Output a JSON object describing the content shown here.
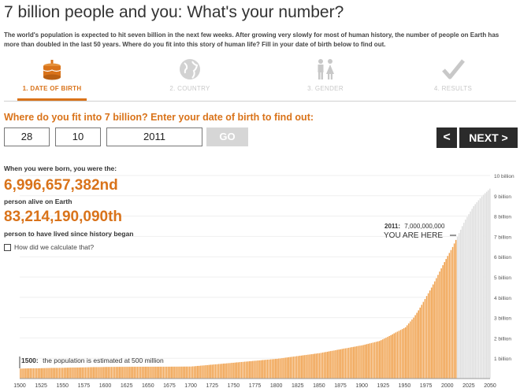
{
  "header": {
    "title": "7 billion people and you: What's your number?",
    "intro": "The world's population is expected to hit seven billion in the next few weeks. After growing very slowly for most of human history, the number of people on Earth has more than doubled in the last 50 years. Where do you fit into this story of human life? Fill in your date of birth below to find out."
  },
  "steps": [
    {
      "label": "1. DATE OF BIRTH",
      "icon": "birthday-cake-icon",
      "active": true
    },
    {
      "label": "2. COUNTRY",
      "icon": "globe-icon",
      "active": false
    },
    {
      "label": "3. GENDER",
      "icon": "male-female-icon",
      "active": false
    },
    {
      "label": "4. RESULTS",
      "icon": "checkmark-icon",
      "active": false
    }
  ],
  "form": {
    "question": "Where do you fit into 7 billion? Enter your date of birth to find out:",
    "day": "28",
    "month": "10",
    "year": "2011",
    "go_label": "GO",
    "prev_label": "<",
    "next_label": "NEXT >"
  },
  "result": {
    "born_label": "When you were born, you were the:",
    "alive_number": "6,996,657,382nd",
    "alive_label": "person alive on Earth",
    "ever_number": "83,214,190,090th",
    "ever_label": "person to have lived since history began",
    "how_link": "How did we calculate that?"
  },
  "colors": {
    "accent": "#d9731a",
    "bar": "#f0a04b",
    "projection": "#d8d8d8",
    "dark": "#2b2b2b"
  },
  "chart_data": {
    "type": "bar",
    "x_ticks": [
      "1500",
      "1525",
      "1550",
      "1575",
      "1600",
      "1625",
      "1650",
      "1675",
      "1700",
      "1725",
      "1750",
      "1775",
      "1800",
      "1825",
      "1850",
      "1875",
      "1900",
      "1925",
      "1950",
      "1975",
      "2000",
      "2025",
      "2050"
    ],
    "y_ticks": [
      "1 billion",
      "2 billion",
      "3 billion",
      "4 billion",
      "5 billion",
      "6 billion",
      "7 billion",
      "8 billion",
      "9 billion",
      "10 billion"
    ],
    "ylim": [
      0,
      10
    ],
    "y_unit": "billion",
    "historical": {
      "x": [
        1500,
        1600,
        1700,
        1750,
        1800,
        1850,
        1900,
        1920,
        1930,
        1940,
        1950,
        1955,
        1960,
        1965,
        1970,
        1975,
        1980,
        1985,
        1990,
        1995,
        2000,
        2005,
        2011
      ],
      "y": [
        0.5,
        0.58,
        0.6,
        0.79,
        0.98,
        1.26,
        1.65,
        1.86,
        2.07,
        2.3,
        2.52,
        2.77,
        3.02,
        3.33,
        3.69,
        4.07,
        4.43,
        4.83,
        5.26,
        5.67,
        6.07,
        6.45,
        7.0
      ]
    },
    "projection": {
      "x": [
        2011,
        2020,
        2030,
        2040,
        2050
      ],
      "y": [
        7.0,
        7.8,
        8.5,
        9.0,
        9.4
      ]
    },
    "annotations": {
      "start_year": "1500:",
      "start_text": "the population is estimated at 500 million",
      "here_year": "2011:",
      "here_value": "7,000,000,000",
      "here_text": "YOU ARE HERE"
    }
  }
}
